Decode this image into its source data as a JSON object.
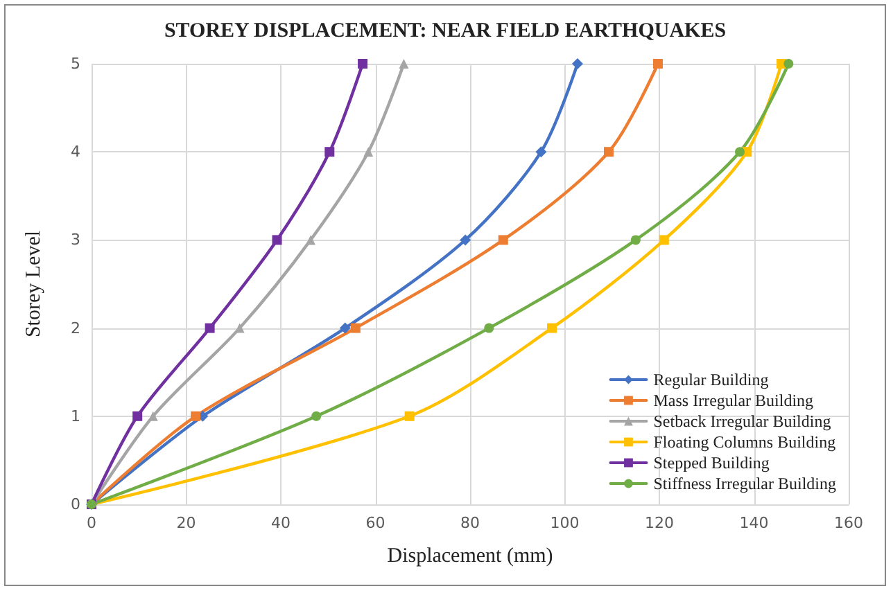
{
  "chart_data": {
    "type": "line",
    "title": "STOREY DISPLACEMENT: NEAR FIELD EARTHQUAKES",
    "xlabel": "Displacement (mm)",
    "ylabel": "Storey Level",
    "xlim": [
      0,
      160
    ],
    "xticks": [
      0,
      20,
      40,
      60,
      80,
      100,
      120,
      140,
      160
    ],
    "ylim": [
      0,
      5
    ],
    "yticks": [
      0,
      1,
      2,
      3,
      4,
      5
    ],
    "grid": true,
    "legend": "bottom right",
    "line_style": "solid",
    "series": [
      {
        "name": "Regular Building",
        "color": "#4472c4",
        "marker": "diamond",
        "x": [
          0,
          23.5,
          53.6,
          79,
          95,
          102.7
        ],
        "values": [
          0,
          1,
          2,
          3,
          4,
          5
        ]
      },
      {
        "name": "Mass Irregular Building",
        "color": "#ed7d31",
        "marker": "square",
        "x": [
          0,
          22,
          55.8,
          87,
          109.3,
          119.7
        ],
        "values": [
          0,
          1,
          2,
          3,
          4,
          5
        ]
      },
      {
        "name": "Setback Irregular Building",
        "color": "#a5a5a5",
        "marker": "triangle",
        "x": [
          0,
          13,
          31.3,
          46.3,
          58.5,
          66
        ],
        "values": [
          0,
          1,
          2,
          3,
          4,
          5
        ]
      },
      {
        "name": "Floating Columns Building",
        "color": "#ffc000",
        "marker": "square",
        "x": [
          0,
          67.2,
          97.3,
          121,
          138.5,
          145.8
        ],
        "values": [
          0,
          1,
          2,
          3,
          4,
          5
        ]
      },
      {
        "name": "Stepped Building",
        "color": "#7030a0",
        "marker": "square",
        "x": [
          0,
          9.7,
          25,
          39.2,
          50.3,
          57.3
        ],
        "values": [
          0,
          1,
          2,
          3,
          4,
          5
        ]
      },
      {
        "name": "Stiffness Irregular Building",
        "color": "#70ad47",
        "marker": "circle",
        "x": [
          0,
          47.5,
          84,
          115,
          137,
          147.3
        ],
        "values": [
          0,
          1,
          2,
          3,
          4,
          5
        ]
      }
    ]
  }
}
